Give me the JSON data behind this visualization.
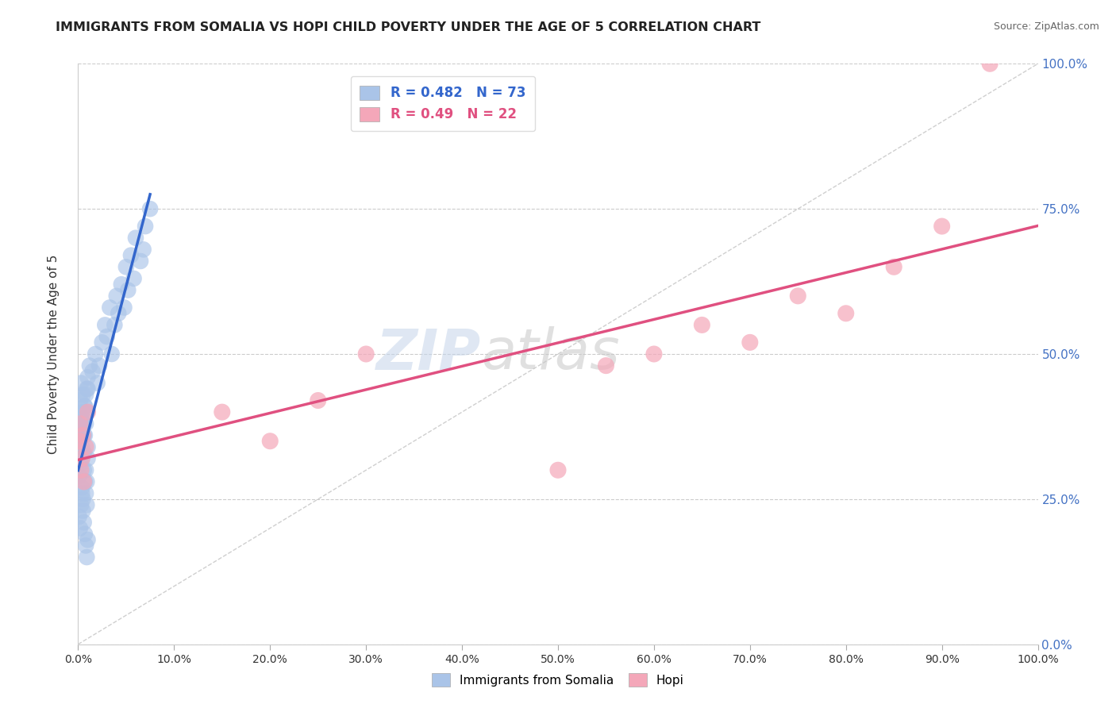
{
  "title": "IMMIGRANTS FROM SOMALIA VS HOPI CHILD POVERTY UNDER THE AGE OF 5 CORRELATION CHART",
  "source": "Source: ZipAtlas.com",
  "ylabel": "Child Poverty Under the Age of 5",
  "legend_bottom": [
    "Immigrants from Somalia",
    "Hopi"
  ],
  "somalia_R": 0.482,
  "somalia_N": 73,
  "hopi_R": 0.49,
  "hopi_N": 22,
  "somalia_color": "#aac4e8",
  "hopi_color": "#f4a7b9",
  "somalia_line_color": "#3366cc",
  "hopi_line_color": "#e05080",
  "diagonal_color": "#bbbbbb",
  "background_color": "#ffffff",
  "ytick_color": "#4472c4",
  "xlim": [
    0,
    1
  ],
  "ylim": [
    0,
    1
  ],
  "xtick_labels": [
    "0.0%",
    "10.0%",
    "20.0%",
    "30.0%",
    "40.0%",
    "50.0%",
    "60.0%",
    "70.0%",
    "80.0%",
    "90.0%",
    "100.0%"
  ],
  "ytick_labels": [
    "0.0%",
    "25.0%",
    "50.0%",
    "75.0%",
    "100.0%"
  ],
  "ytick_positions": [
    0.0,
    0.25,
    0.5,
    0.75,
    1.0
  ],
  "somalia_x": [
    0.002,
    0.003,
    0.004,
    0.005,
    0.005,
    0.006,
    0.007,
    0.008,
    0.009,
    0.01,
    0.002,
    0.003,
    0.004,
    0.005,
    0.006,
    0.007,
    0.008,
    0.009,
    0.01,
    0.012,
    0.001,
    0.002,
    0.003,
    0.004,
    0.005,
    0.006,
    0.007,
    0.008,
    0.009,
    0.01,
    0.001,
    0.002,
    0.003,
    0.004,
    0.005,
    0.006,
    0.007,
    0.008,
    0.009,
    0.01,
    0.001,
    0.002,
    0.003,
    0.004,
    0.005,
    0.006,
    0.007,
    0.008,
    0.009,
    0.01,
    0.015,
    0.018,
    0.02,
    0.022,
    0.025,
    0.028,
    0.03,
    0.033,
    0.035,
    0.038,
    0.04,
    0.042,
    0.045,
    0.048,
    0.05,
    0.052,
    0.055,
    0.058,
    0.06,
    0.065,
    0.068,
    0.07,
    0.075
  ],
  "somalia_y": [
    0.35,
    0.37,
    0.32,
    0.38,
    0.4,
    0.33,
    0.36,
    0.3,
    0.28,
    0.34,
    0.42,
    0.45,
    0.39,
    0.43,
    0.36,
    0.41,
    0.38,
    0.44,
    0.46,
    0.48,
    0.29,
    0.31,
    0.33,
    0.27,
    0.25,
    0.3,
    0.28,
    0.26,
    0.24,
    0.32,
    0.22,
    0.2,
    0.24,
    0.26,
    0.23,
    0.21,
    0.19,
    0.17,
    0.15,
    0.18,
    0.35,
    0.37,
    0.39,
    0.34,
    0.36,
    0.38,
    0.41,
    0.43,
    0.4,
    0.44,
    0.47,
    0.5,
    0.45,
    0.48,
    0.52,
    0.55,
    0.53,
    0.58,
    0.5,
    0.55,
    0.6,
    0.57,
    0.62,
    0.58,
    0.65,
    0.61,
    0.67,
    0.63,
    0.7,
    0.66,
    0.68,
    0.72,
    0.75
  ],
  "hopi_x": [
    0.001,
    0.002,
    0.003,
    0.004,
    0.005,
    0.006,
    0.008,
    0.01,
    0.15,
    0.2,
    0.25,
    0.3,
    0.5,
    0.55,
    0.6,
    0.65,
    0.7,
    0.75,
    0.8,
    0.85,
    0.9,
    0.95
  ],
  "hopi_y": [
    0.35,
    0.38,
    0.3,
    0.32,
    0.36,
    0.28,
    0.34,
    0.4,
    0.4,
    0.35,
    0.42,
    0.5,
    0.3,
    0.48,
    0.5,
    0.55,
    0.52,
    0.6,
    0.57,
    0.65,
    0.72,
    1.0
  ]
}
